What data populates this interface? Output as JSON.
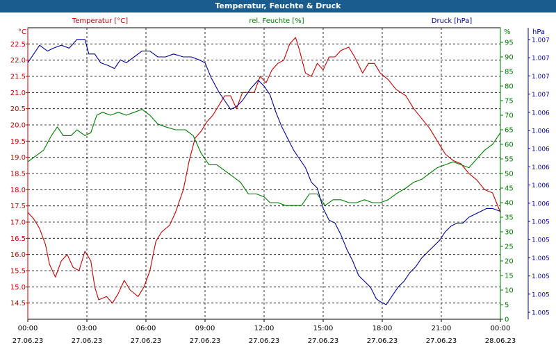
{
  "window": {
    "title": "Temperatur, Feuchte & Druck"
  },
  "colors": {
    "temperature": "#c00000",
    "humidity": "#007a00",
    "pressure": "#00008f",
    "title_bg": "#1b5c8f"
  },
  "chart_data": {
    "type": "line",
    "grid": true,
    "x_tick_times": [
      "00:00",
      "03:00",
      "06:00",
      "09:00",
      "12:00",
      "15:00",
      "18:00",
      "21:00",
      "00:00"
    ],
    "x_tick_dates": [
      "27.06.23",
      "27.06.23",
      "27.06.23",
      "27.06.23",
      "27.06.23",
      "27.06.23",
      "27.06.23",
      "27.06.23",
      "28.06.23"
    ],
    "xlim_hours": [
      0,
      24
    ],
    "axes": {
      "left": {
        "unit_label": "°C",
        "range": [
          14.0,
          23.0
        ],
        "ticks": [
          "14.5",
          "15.0",
          "15.5",
          "16.0",
          "16.5",
          "17.0",
          "17.5",
          "18.0",
          "18.5",
          "19.0",
          "19.5",
          "20.0",
          "20.5",
          "21.0",
          "21.5",
          "22.0",
          "22.5"
        ]
      },
      "middle": {
        "unit_label": "%",
        "range": [
          0,
          100
        ],
        "ticks": [
          "0",
          "5",
          "10",
          "15",
          "20",
          "25",
          "30",
          "35",
          "40",
          "45",
          "50",
          "55",
          "60",
          "65",
          "70",
          "75",
          "80",
          "85",
          "90",
          "95"
        ]
      },
      "right": {
        "unit_label": "hPa",
        "ticks": [
          "1.005",
          "1.005",
          "1.005",
          "1.005",
          "1.005",
          "1.005",
          "1.006",
          "1.006",
          "1.006",
          "1.006",
          "1.006",
          "1.006",
          "1.007",
          "1.007",
          "1.007",
          "1.007"
        ]
      }
    },
    "series": [
      {
        "name": "Temperatur [°C]",
        "axis": "left",
        "points": [
          [
            0,
            17.3
          ],
          [
            0.3,
            17.1
          ],
          [
            0.6,
            16.8
          ],
          [
            0.9,
            16.3
          ],
          [
            1.1,
            15.7
          ],
          [
            1.4,
            15.3
          ],
          [
            1.7,
            15.8
          ],
          [
            2.0,
            16.0
          ],
          [
            2.3,
            15.6
          ],
          [
            2.6,
            15.5
          ],
          [
            2.9,
            16.1
          ],
          [
            3.2,
            15.8
          ],
          [
            3.4,
            15.0
          ],
          [
            3.6,
            14.6
          ],
          [
            4.0,
            14.7
          ],
          [
            4.3,
            14.5
          ],
          [
            4.6,
            14.8
          ],
          [
            4.9,
            15.2
          ],
          [
            5.2,
            14.9
          ],
          [
            5.6,
            14.7
          ],
          [
            5.9,
            15.0
          ],
          [
            6.2,
            15.5
          ],
          [
            6.5,
            16.4
          ],
          [
            6.8,
            16.7
          ],
          [
            7.2,
            16.9
          ],
          [
            7.5,
            17.3
          ],
          [
            7.9,
            18.0
          ],
          [
            8.2,
            18.9
          ],
          [
            8.5,
            19.6
          ],
          [
            8.8,
            19.8
          ],
          [
            9.1,
            20.1
          ],
          [
            9.4,
            20.3
          ],
          [
            9.7,
            20.6
          ],
          [
            10.0,
            20.9
          ],
          [
            10.3,
            20.9
          ],
          [
            10.6,
            20.5
          ],
          [
            10.9,
            21.0
          ],
          [
            11.2,
            21.0
          ],
          [
            11.5,
            21.0
          ],
          [
            11.8,
            21.5
          ],
          [
            12.1,
            21.3
          ],
          [
            12.4,
            21.7
          ],
          [
            12.7,
            21.9
          ],
          [
            13.0,
            22.0
          ],
          [
            13.3,
            22.5
          ],
          [
            13.6,
            22.7
          ],
          [
            13.8,
            22.3
          ],
          [
            14.1,
            21.6
          ],
          [
            14.4,
            21.5
          ],
          [
            14.7,
            21.9
          ],
          [
            15.0,
            21.7
          ],
          [
            15.3,
            22.1
          ],
          [
            15.6,
            22.1
          ],
          [
            15.9,
            22.3
          ],
          [
            16.3,
            22.4
          ],
          [
            16.6,
            22.1
          ],
          [
            17.0,
            21.6
          ],
          [
            17.3,
            21.9
          ],
          [
            17.6,
            21.9
          ],
          [
            17.9,
            21.6
          ],
          [
            18.3,
            21.4
          ],
          [
            18.7,
            21.1
          ],
          [
            19.2,
            20.9
          ],
          [
            19.6,
            20.5
          ],
          [
            20.0,
            20.2
          ],
          [
            20.4,
            19.9
          ],
          [
            20.8,
            19.5
          ],
          [
            21.2,
            19.1
          ],
          [
            21.6,
            18.9
          ],
          [
            22.0,
            18.8
          ],
          [
            22.4,
            18.5
          ],
          [
            22.8,
            18.3
          ],
          [
            23.2,
            18.0
          ],
          [
            23.6,
            17.9
          ],
          [
            24.0,
            17.3
          ]
        ]
      },
      {
        "name": "rel. Feuchte [%]",
        "axis": "middle",
        "points": [
          [
            0,
            54
          ],
          [
            0.4,
            56
          ],
          [
            0.8,
            58
          ],
          [
            1.2,
            63
          ],
          [
            1.5,
            66
          ],
          [
            1.8,
            63
          ],
          [
            2.2,
            63
          ],
          [
            2.5,
            65
          ],
          [
            2.9,
            63
          ],
          [
            3.2,
            64
          ],
          [
            3.5,
            70
          ],
          [
            3.8,
            71
          ],
          [
            4.2,
            70
          ],
          [
            4.6,
            71
          ],
          [
            5.0,
            70
          ],
          [
            5.4,
            71
          ],
          [
            5.8,
            72
          ],
          [
            6.2,
            70
          ],
          [
            6.6,
            67
          ],
          [
            7.0,
            66
          ],
          [
            7.5,
            65
          ],
          [
            8.0,
            65
          ],
          [
            8.4,
            63
          ],
          [
            8.8,
            57
          ],
          [
            9.2,
            53
          ],
          [
            9.6,
            53
          ],
          [
            10.0,
            51
          ],
          [
            10.4,
            49
          ],
          [
            10.8,
            47
          ],
          [
            11.2,
            43
          ],
          [
            11.6,
            43
          ],
          [
            12.0,
            42
          ],
          [
            12.3,
            40
          ],
          [
            12.7,
            40
          ],
          [
            13.1,
            39
          ],
          [
            13.5,
            39
          ],
          [
            13.9,
            39
          ],
          [
            14.3,
            43
          ],
          [
            14.7,
            43
          ],
          [
            15.1,
            39
          ],
          [
            15.5,
            41
          ],
          [
            15.9,
            41
          ],
          [
            16.3,
            40
          ],
          [
            16.7,
            40
          ],
          [
            17.1,
            41
          ],
          [
            17.5,
            40
          ],
          [
            17.9,
            40
          ],
          [
            18.3,
            41
          ],
          [
            18.7,
            43
          ],
          [
            19.2,
            45
          ],
          [
            19.6,
            47
          ],
          [
            20.0,
            48
          ],
          [
            20.4,
            50
          ],
          [
            20.8,
            52
          ],
          [
            21.2,
            53
          ],
          [
            21.6,
            54
          ],
          [
            22.0,
            53
          ],
          [
            22.4,
            52
          ],
          [
            22.8,
            55
          ],
          [
            23.2,
            58
          ],
          [
            23.6,
            60
          ],
          [
            24.0,
            64
          ]
        ]
      },
      {
        "name": "Druck [hPa]",
        "axis": "right",
        "points": [
          [
            0,
            88
          ],
          [
            0.3,
            91
          ],
          [
            0.6,
            94
          ],
          [
            1.0,
            92
          ],
          [
            1.3,
            93
          ],
          [
            1.7,
            94
          ],
          [
            2.1,
            93
          ],
          [
            2.5,
            96
          ],
          [
            2.9,
            96
          ],
          [
            3.1,
            91
          ],
          [
            3.4,
            91
          ],
          [
            3.7,
            88
          ],
          [
            4.1,
            87
          ],
          [
            4.4,
            86
          ],
          [
            4.7,
            89
          ],
          [
            5.0,
            88
          ],
          [
            5.4,
            90
          ],
          [
            5.8,
            92
          ],
          [
            6.2,
            92
          ],
          [
            6.6,
            90
          ],
          [
            7.0,
            90
          ],
          [
            7.4,
            91
          ],
          [
            7.9,
            90
          ],
          [
            8.3,
            90
          ],
          [
            8.7,
            89
          ],
          [
            9.0,
            88
          ],
          [
            9.3,
            83
          ],
          [
            9.7,
            78
          ],
          [
            10.0,
            75
          ],
          [
            10.3,
            72
          ],
          [
            10.6,
            73
          ],
          [
            10.9,
            75
          ],
          [
            11.3,
            79
          ],
          [
            11.7,
            82
          ],
          [
            12.0,
            80
          ],
          [
            12.3,
            77
          ],
          [
            12.6,
            71
          ],
          [
            12.9,
            66
          ],
          [
            13.2,
            62
          ],
          [
            13.5,
            58
          ],
          [
            13.8,
            55
          ],
          [
            14.1,
            52
          ],
          [
            14.4,
            47
          ],
          [
            14.7,
            45
          ],
          [
            15.0,
            38
          ],
          [
            15.3,
            34
          ],
          [
            15.6,
            33
          ],
          [
            15.9,
            29
          ],
          [
            16.2,
            24
          ],
          [
            16.5,
            20
          ],
          [
            16.8,
            15
          ],
          [
            17.1,
            13
          ],
          [
            17.4,
            11
          ],
          [
            17.7,
            7
          ],
          [
            17.9,
            6
          ],
          [
            18.2,
            5
          ],
          [
            18.5,
            8
          ],
          [
            18.8,
            11
          ],
          [
            19.1,
            13
          ],
          [
            19.4,
            16
          ],
          [
            19.7,
            18
          ],
          [
            20.0,
            21
          ],
          [
            20.3,
            23
          ],
          [
            20.6,
            25
          ],
          [
            20.9,
            27
          ],
          [
            21.2,
            30
          ],
          [
            21.5,
            32
          ],
          [
            21.8,
            33
          ],
          [
            22.1,
            33
          ],
          [
            22.4,
            35
          ],
          [
            22.7,
            36
          ],
          [
            23.0,
            37
          ],
          [
            23.3,
            38
          ],
          [
            23.6,
            38
          ],
          [
            24.0,
            37
          ]
        ]
      }
    ]
  }
}
